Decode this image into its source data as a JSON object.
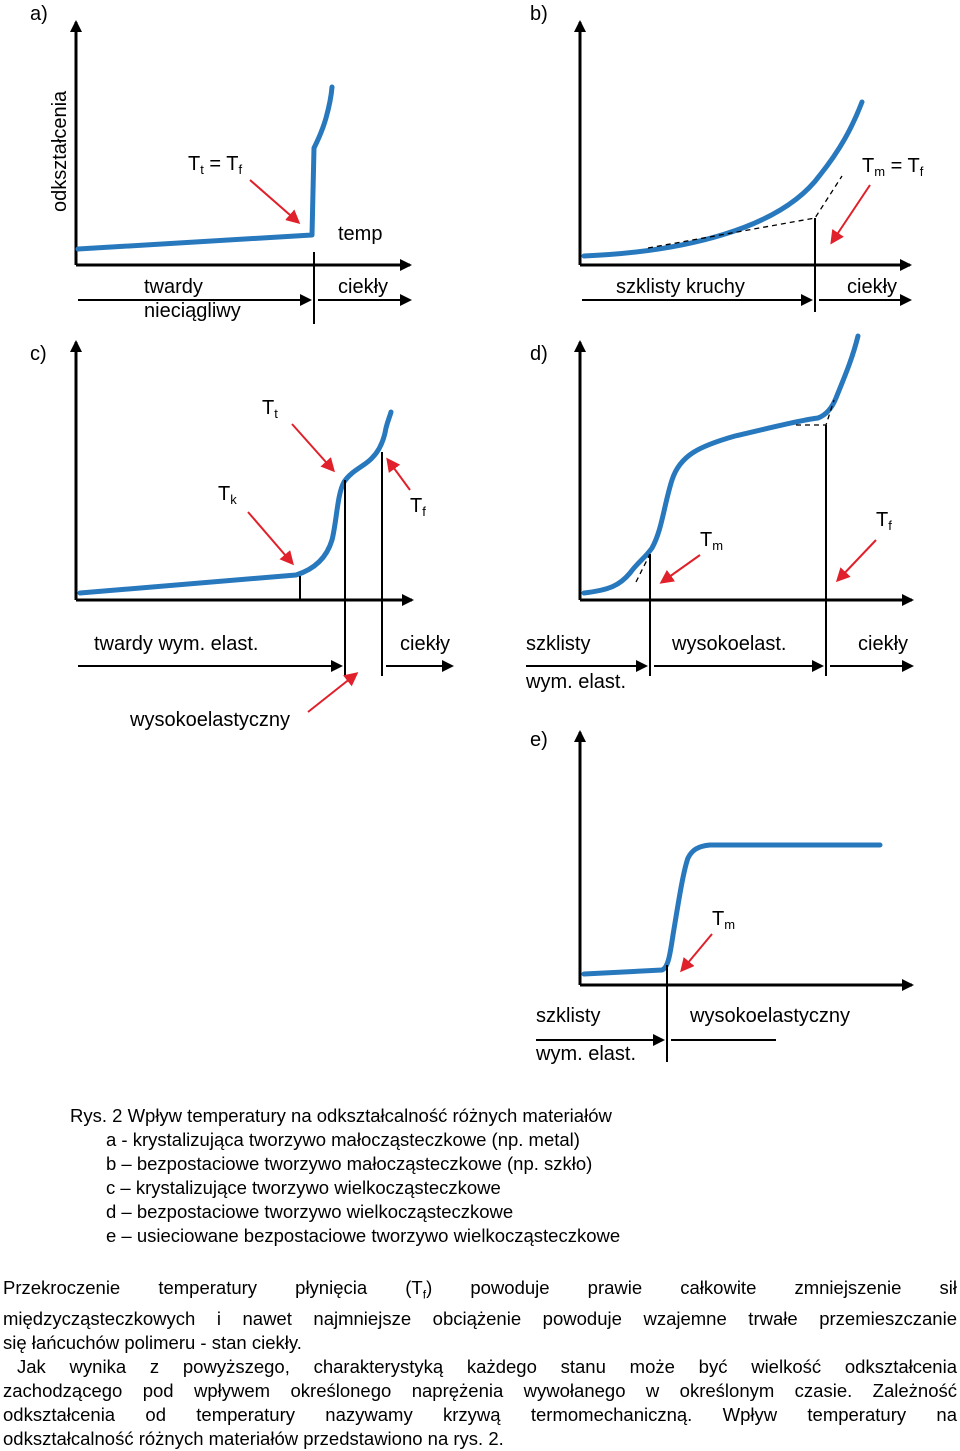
{
  "panels": {
    "a": {
      "letter": "a)",
      "y_label": "odkształcenia",
      "x_label": "temp",
      "annotation": {
        "main": "T",
        "sub": "t",
        "mid": " = T",
        "sub2": "f"
      },
      "regions": [
        [
          "twardy",
          "nieciągliwy"
        ],
        [
          "ciekły"
        ]
      ]
    },
    "b": {
      "letter": "b)",
      "annotation": {
        "main": "T",
        "sub": "m",
        "mid": " = T",
        "sub2": "f"
      },
      "regions": [
        [
          "szklisty kruchy"
        ],
        [
          "ciekły"
        ]
      ]
    },
    "c": {
      "letter": "c)",
      "labels": [
        {
          "main": "T",
          "sub": "t"
        },
        {
          "main": "T",
          "sub": "k"
        },
        {
          "main": "T",
          "sub": "f"
        }
      ],
      "regions": [
        [
          "twardy wym. elast."
        ],
        [
          "ciekły"
        ],
        [
          "wysokoelastyczny"
        ]
      ]
    },
    "d": {
      "letter": "d)",
      "labels": [
        {
          "main": "T",
          "sub": "m"
        },
        {
          "main": "T",
          "sub": "f"
        }
      ],
      "regions": [
        [
          "szklisty",
          "wym. elast."
        ],
        [
          "wysokoelast."
        ],
        [
          "ciekły"
        ]
      ]
    },
    "e": {
      "letter": "e)",
      "labels": [
        {
          "main": "T",
          "sub": "m"
        }
      ],
      "regions": [
        [
          "szklisty",
          "wym. elast."
        ],
        [
          "wysokoelastyczny"
        ]
      ]
    }
  },
  "colors": {
    "curve": "#2878be",
    "arrow": "#e0202a",
    "axis": "#000000"
  },
  "caption": {
    "title": "Rys. 2  Wpływ temperatury na odkształcalność różnych materiałów",
    "items": [
      "a -  krystalizująca tworzywo małocząsteczkowe (np. metal)",
      "b – bezpostaciowe tworzywo małocząsteczkowe (np. szkło)",
      "c – krystalizujące tworzywo wielkocząsteczkowe",
      "d – bezpostaciowe tworzywo wielkocząsteczkowe",
      "e – usieciowane bezpostaciowe tworzywo wielkocząsteczkowe"
    ]
  },
  "body": {
    "p1_a": "Przekroczenie temperatury płynięcia (T",
    "p1_sub": "f",
    "p1_b": ") powoduje prawie całkowite zmniejszenie sił",
    "p1_l2": "międzycząsteczkowych i nawet najmniejsze obciążenie powoduje wzajemne trwałe przemieszczanie",
    "p1_l3": "się łańcuchów polimeru - stan ciekły.",
    "p2_l1": "Jak wynika z  powyższego, charakterystyką każdego stanu może być wielkość odkształcenia",
    "p2_l2": "zachodzącego pod wpływem określonego naprężenia wywołanego w określonym czasie. Zależność",
    "p2_l3": "odkształcenia od temperatury nazywamy krzywą termomechaniczną. Wpływ temperatury na",
    "p2_l4": "odkształcalność różnych materiałów przedstawiono na rys. 2."
  }
}
